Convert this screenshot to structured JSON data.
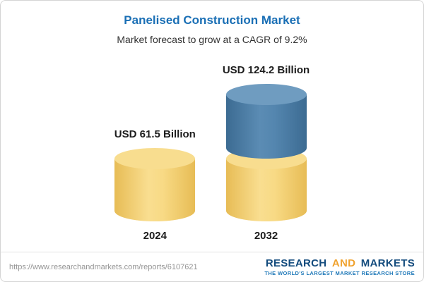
{
  "chart_data": {
    "type": "bar",
    "title": "Panelised Construction Market",
    "subtitle": "Market forecast to grow at a CAGR of 9.2%",
    "categories": [
      "2024",
      "2032"
    ],
    "values": [
      61.5,
      124.2
    ],
    "unit": "USD Billion",
    "labels": [
      "USD 61.5 Billion",
      "USD 124.2 Billion"
    ],
    "cagr": "9.2%",
    "legend": "off",
    "grid": "off",
    "bar_colors": {
      "base": "#f2cf74",
      "growth": "#4e81ab"
    },
    "title_color": "#1a6fb5"
  },
  "footer": {
    "url": "https://www.researchandmarkets.com/reports/6107621",
    "logo": {
      "research": "RESEARCH",
      "and": "AND",
      "markets": "MARKETS",
      "tagline": "THE WORLD'S LARGEST MARKET RESEARCH STORE"
    }
  }
}
